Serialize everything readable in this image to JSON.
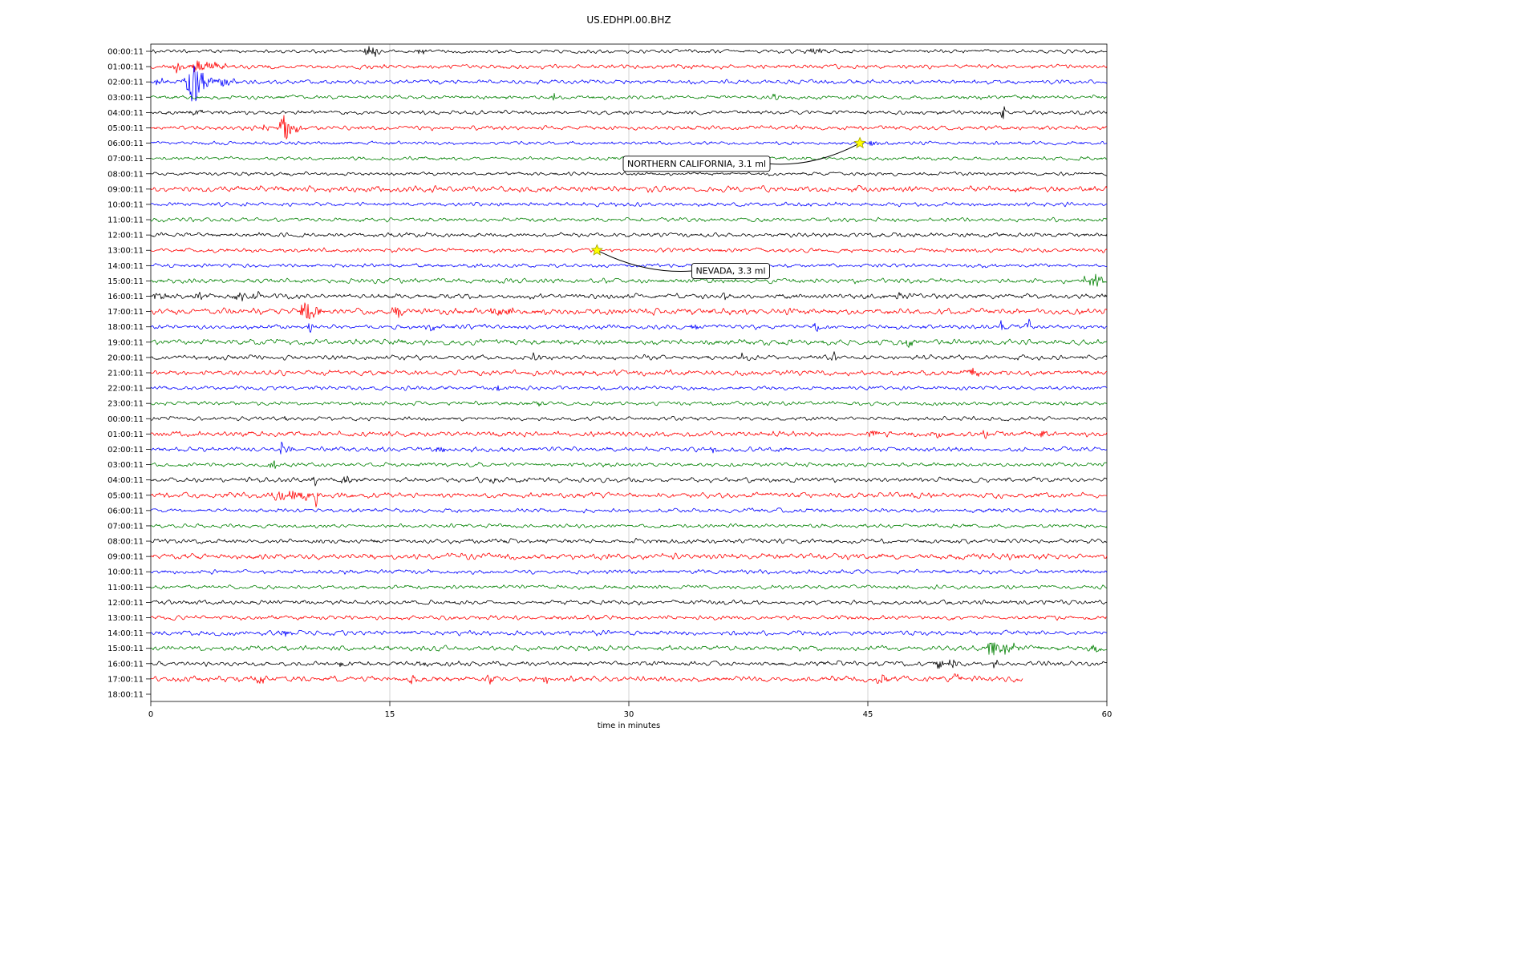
{
  "title": "US.EDHPI.00.BHZ",
  "chart_data": {
    "type": "line",
    "variant": "helicorder-dayplot",
    "station_id": "US.EDHPI.00.BHZ",
    "xlabel": "time in minutes",
    "xlim": [
      0,
      60
    ],
    "x_ticks": [
      0,
      15,
      30,
      45,
      60
    ],
    "grid": {
      "vertical_lines": [
        15,
        30,
        45
      ],
      "color": "#c8c8c8"
    },
    "trace_color_cycle": [
      "#000000",
      "#ff0000",
      "#0000ff",
      "#008000"
    ],
    "event_marker_color": "#ffff00",
    "rows": [
      {
        "label": "00:00:11",
        "amp": 1.0,
        "bursts": [
          [
            13.7,
            4,
            0.5
          ],
          [
            14.2,
            3,
            0.3
          ],
          [
            17.0,
            2.5,
            0.3
          ],
          [
            41.7,
            2.5,
            0.4
          ]
        ]
      },
      {
        "label": "01:00:11",
        "amp": 1.2,
        "bursts": [
          [
            1.7,
            3.5,
            0.4
          ],
          [
            2.9,
            4.5,
            0.5
          ],
          [
            3.8,
            4,
            0.4
          ],
          [
            4.4,
            3,
            0.3
          ]
        ]
      },
      {
        "label": "02:00:11",
        "amp": 1.2,
        "bursts": [
          [
            0.5,
            3,
            0.3
          ],
          [
            2.7,
            13,
            0.5
          ],
          [
            3.3,
            6,
            0.6
          ],
          [
            4.5,
            3,
            0.8
          ]
        ]
      },
      {
        "label": "03:00:11",
        "amp": 1.1,
        "bursts": [
          [
            25.3,
            3.5,
            0.15
          ],
          [
            39.2,
            2.5,
            0.2
          ]
        ]
      },
      {
        "label": "04:00:11",
        "amp": 1.1,
        "bursts": [
          [
            3.0,
            2.5,
            0.4
          ],
          [
            53.5,
            9,
            0.12
          ]
        ]
      },
      {
        "label": "05:00:11",
        "amp": 1.2,
        "bursts": [
          [
            7.2,
            3,
            0.3
          ],
          [
            8.4,
            10,
            0.35
          ],
          [
            8.9,
            4,
            0.5
          ]
        ]
      },
      {
        "label": "06:00:11",
        "amp": 1.0,
        "bursts": [
          [
            45.2,
            1.8,
            0.8
          ]
        ]
      },
      {
        "label": "07:00:11",
        "amp": 1.0,
        "bursts": []
      },
      {
        "label": "08:00:11",
        "amp": 1.0,
        "bursts": []
      },
      {
        "label": "09:00:11",
        "amp": 1.6,
        "bursts": []
      },
      {
        "label": "10:00:11",
        "amp": 1.1,
        "bursts": []
      },
      {
        "label": "11:00:11",
        "amp": 1.1,
        "bursts": []
      },
      {
        "label": "12:00:11",
        "amp": 1.2,
        "bursts": []
      },
      {
        "label": "13:00:11",
        "amp": 1.2,
        "bursts": []
      },
      {
        "label": "14:00:11",
        "amp": 1.1,
        "bursts": []
      },
      {
        "label": "15:00:11",
        "amp": 1.3,
        "bursts": [
          [
            58.7,
            3,
            0.3
          ],
          [
            59.3,
            6,
            0.35
          ]
        ]
      },
      {
        "label": "16:00:11",
        "amp": 1.4,
        "bursts": [
          [
            0.5,
            3.5,
            0.6
          ],
          [
            3.1,
            2.5,
            0.4
          ],
          [
            5.6,
            3,
            0.5
          ],
          [
            6.6,
            2.5,
            0.3
          ],
          [
            36.0,
            2.8,
            0.3
          ],
          [
            47.0,
            2.2,
            0.3
          ]
        ]
      },
      {
        "label": "17:00:11",
        "amp": 1.7,
        "bursts": [
          [
            9.7,
            7,
            0.4
          ],
          [
            10.3,
            5,
            0.3
          ],
          [
            15.5,
            5.5,
            0.25
          ],
          [
            21.7,
            3.5,
            0.5
          ],
          [
            22.5,
            3,
            0.3
          ],
          [
            31.2,
            2.8,
            0.4
          ]
        ]
      },
      {
        "label": "18:00:11",
        "amp": 1.3,
        "bursts": [
          [
            10.0,
            6.5,
            0.12
          ],
          [
            17.5,
            2.5,
            0.3
          ],
          [
            34.2,
            2.5,
            0.3
          ],
          [
            41.8,
            3.5,
            0.2
          ],
          [
            53.4,
            4,
            0.15
          ],
          [
            55.1,
            4,
            0.15
          ]
        ]
      },
      {
        "label": "19:00:11",
        "amp": 1.5,
        "bursts": [
          [
            40.0,
            2.8,
            0.3
          ],
          [
            47.6,
            3.2,
            0.25
          ]
        ]
      },
      {
        "label": "20:00:11",
        "amp": 1.3,
        "bursts": [
          [
            24.1,
            2.8,
            0.3
          ],
          [
            37.2,
            3.5,
            0.25
          ],
          [
            42.9,
            3.5,
            0.2
          ]
        ]
      },
      {
        "label": "21:00:11",
        "amp": 1.5,
        "bursts": [
          [
            51.6,
            3.5,
            0.4
          ]
        ]
      },
      {
        "label": "22:00:11",
        "amp": 1.1,
        "bursts": [
          [
            21.8,
            3.2,
            0.15
          ]
        ]
      },
      {
        "label": "23:00:11",
        "amp": 1.1,
        "bursts": [
          [
            24.4,
            2,
            0.3
          ]
        ]
      },
      {
        "label": "00:00:11",
        "amp": 1.1,
        "bursts": [
          [
            8.4,
            2.2,
            0.3
          ]
        ]
      },
      {
        "label": "01:00:11",
        "amp": 1.5,
        "bursts": [
          [
            45.3,
            2.8,
            0.4
          ],
          [
            49.3,
            3.5,
            0.3
          ],
          [
            52.4,
            2.5,
            0.3
          ],
          [
            56.0,
            2.8,
            0.3
          ]
        ]
      },
      {
        "label": "02:00:11",
        "amp": 1.3,
        "bursts": [
          [
            8.2,
            4.5,
            0.2
          ],
          [
            8.6,
            3,
            0.3
          ],
          [
            18.2,
            3.5,
            0.3
          ],
          [
            35.3,
            3,
            0.25
          ]
        ]
      },
      {
        "label": "03:00:11",
        "amp": 1.1,
        "bursts": [
          [
            7.7,
            4.5,
            0.2
          ]
        ]
      },
      {
        "label": "04:00:11",
        "amp": 1.3,
        "bursts": [
          [
            10.3,
            4.5,
            0.2
          ],
          [
            12.3,
            2.8,
            0.3
          ],
          [
            21.5,
            2.8,
            0.3
          ]
        ]
      },
      {
        "label": "05:00:11",
        "amp": 1.5,
        "bursts": [
          [
            8.1,
            4.5,
            0.4
          ],
          [
            9.0,
            4,
            0.4
          ],
          [
            9.8,
            3,
            0.3
          ],
          [
            10.35,
            11,
            0.12
          ]
        ]
      },
      {
        "label": "06:00:11",
        "amp": 1.1,
        "bursts": []
      },
      {
        "label": "07:00:11",
        "amp": 1.1,
        "bursts": []
      },
      {
        "label": "08:00:11",
        "amp": 1.3,
        "bursts": []
      },
      {
        "label": "09:00:11",
        "amp": 1.6,
        "bursts": []
      },
      {
        "label": "10:00:11",
        "amp": 1.2,
        "bursts": []
      },
      {
        "label": "11:00:11",
        "amp": 1.1,
        "bursts": []
      },
      {
        "label": "12:00:11",
        "amp": 1.3,
        "bursts": []
      },
      {
        "label": "13:00:11",
        "amp": 1.2,
        "bursts": []
      },
      {
        "label": "14:00:11",
        "amp": 1.3,
        "bursts": [
          [
            8.4,
            3.2,
            0.3
          ]
        ]
      },
      {
        "label": "15:00:11",
        "amp": 1.4,
        "bursts": [
          [
            52.8,
            7,
            0.3
          ],
          [
            53.6,
            5,
            0.35
          ],
          [
            54.2,
            4,
            0.25
          ],
          [
            59.2,
            4.5,
            0.3
          ]
        ]
      },
      {
        "label": "16:00:11",
        "amp": 1.3,
        "bursts": [
          [
            11.8,
            2.2,
            0.3
          ],
          [
            17.0,
            2.2,
            0.3
          ],
          [
            43.1,
            2.8,
            0.25
          ],
          [
            49.5,
            3.5,
            0.3
          ],
          [
            50.3,
            3.5,
            0.3
          ],
          [
            53.0,
            2.8,
            0.25
          ]
        ]
      },
      {
        "label": "17:00:11",
        "amp": 1.6,
        "end": 54.7,
        "bursts": [
          [
            6.8,
            2.8,
            0.3
          ],
          [
            16.5,
            2.8,
            0.3
          ],
          [
            21.3,
            3.2,
            0.3
          ],
          [
            24.8,
            3.5,
            0.25
          ],
          [
            45.8,
            2.8,
            0.4
          ],
          [
            50.5,
            2.8,
            0.3
          ]
        ]
      },
      {
        "label": "18:00:11",
        "empty": true,
        "amp": 0,
        "bursts": []
      }
    ],
    "events": [
      {
        "label": "NORTHERN CALIFORNIA, 3.1 ml",
        "t": 44.5,
        "row": 6,
        "box_t": 29.9,
        "box_row": 7.35,
        "attach": "right"
      },
      {
        "label": "NEVADA, 3.3 ml",
        "t": 28.0,
        "row": 13,
        "box_t": 34.2,
        "box_row": 14.35,
        "attach": "left"
      }
    ]
  }
}
